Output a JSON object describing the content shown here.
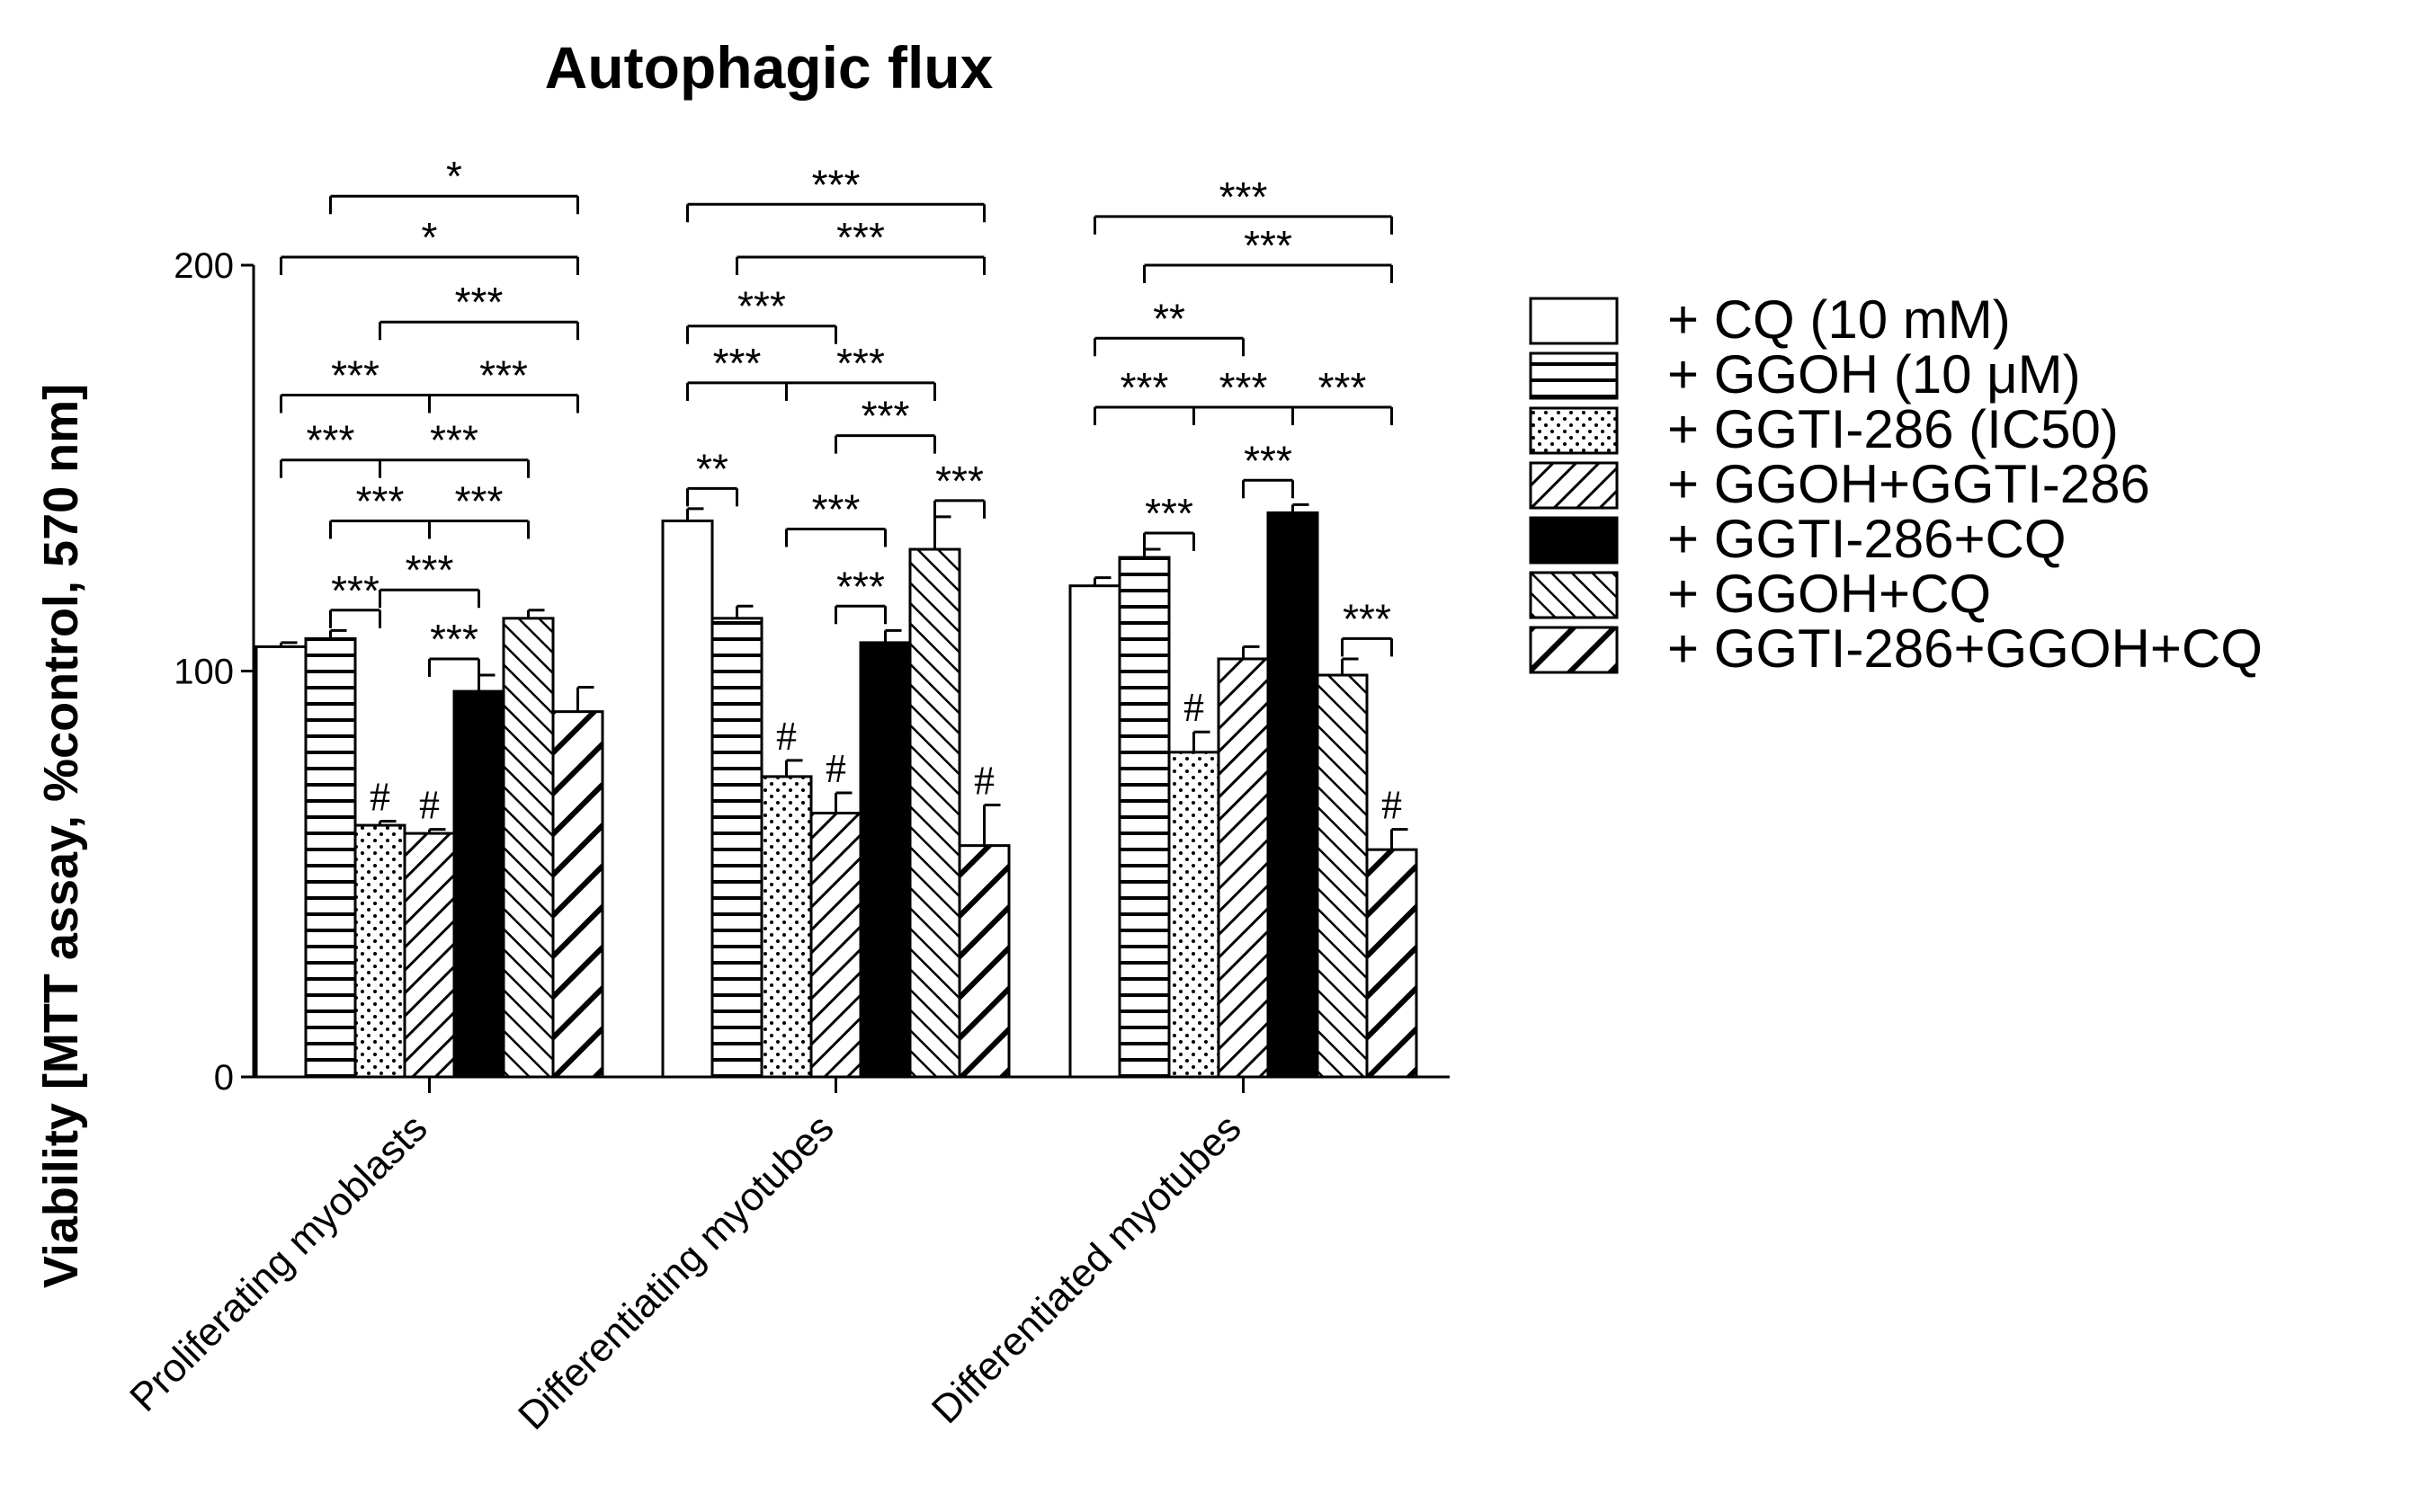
{
  "chart_data": {
    "type": "bar",
    "title": "Autophagic flux",
    "ylabel": "Viability [MTT assay, %control, 570 nm]",
    "xlabel": "",
    "ylim": [
      0,
      200
    ],
    "yticks": [
      0,
      100,
      200
    ],
    "categories": [
      "Proliferating myoblasts",
      "Differentiating myotubes",
      "Differentiated myotubes"
    ],
    "series": [
      {
        "name": "+ CQ (10 mM)",
        "pattern": "open",
        "values": [
          106,
          137,
          121
        ],
        "errors": [
          1,
          3,
          2
        ]
      },
      {
        "name": "+ GGOH (10 μM)",
        "pattern": "horizontal",
        "values": [
          108,
          113,
          128
        ],
        "errors": [
          2,
          3,
          2
        ]
      },
      {
        "name": "+ GGTI-286 (IC50)",
        "pattern": "dots",
        "values": [
          62,
          74,
          80
        ],
        "errors": [
          1,
          4,
          5
        ]
      },
      {
        "name": "+ GGOH+GGTI-286",
        "pattern": "diag-right",
        "values": [
          60,
          65,
          103
        ],
        "errors": [
          1,
          5,
          3
        ]
      },
      {
        "name": "+ GGTI-286+CQ",
        "pattern": "solid",
        "values": [
          95,
          107,
          139
        ],
        "errors": [
          4,
          3,
          2
        ]
      },
      {
        "name": "+ GGOH+CQ",
        "pattern": "diag-left",
        "values": [
          113,
          130,
          99
        ],
        "errors": [
          2,
          8,
          4
        ]
      },
      {
        "name": "+ GGTI-286+GGOH+CQ",
        "pattern": "diag-right-wide",
        "values": [
          90,
          57,
          56
        ],
        "errors": [
          6,
          10,
          5
        ]
      }
    ],
    "hash_marks": [
      {
        "category": 0,
        "series": 2,
        "label": "#"
      },
      {
        "category": 0,
        "series": 3,
        "label": "#"
      },
      {
        "category": 1,
        "series": 2,
        "label": "#"
      },
      {
        "category": 1,
        "series": 3,
        "label": "#"
      },
      {
        "category": 1,
        "series": 6,
        "label": "#"
      },
      {
        "category": 2,
        "series": 2,
        "label": "#"
      },
      {
        "category": 2,
        "series": 6,
        "label": "#"
      }
    ],
    "significance": [
      {
        "category": 0,
        "from": 1,
        "to": 6,
        "y": 217,
        "label": "*"
      },
      {
        "category": 0,
        "from": 0,
        "to": 6,
        "y": 202,
        "label": "*"
      },
      {
        "category": 0,
        "from": 2,
        "to": 6,
        "y": 186,
        "label": "***"
      },
      {
        "category": 0,
        "from": 0,
        "to": 6,
        "mid": 3,
        "y": 168,
        "label": "***",
        "label2": "***"
      },
      {
        "category": 0,
        "from": 0,
        "to": 5,
        "mid": 2,
        "y": 152,
        "label": "***",
        "label2": "***"
      },
      {
        "category": 0,
        "from": 1,
        "to": 5,
        "mid": 3,
        "y": 137,
        "label": "***",
        "label2": "***"
      },
      {
        "category": 0,
        "from": 1,
        "to": 2,
        "y": 115,
        "label": "***"
      },
      {
        "category": 0,
        "from": 2,
        "to": 4,
        "y": 120,
        "label": "***"
      },
      {
        "category": 0,
        "from": 3,
        "to": 4,
        "y": 103,
        "label": "***"
      },
      {
        "category": 1,
        "from": 0,
        "to": 6,
        "y": 215,
        "label": "***"
      },
      {
        "category": 1,
        "from": 1,
        "to": 6,
        "y": 202,
        "label": "***"
      },
      {
        "category": 1,
        "from": 0,
        "to": 3,
        "y": 185,
        "label": "***"
      },
      {
        "category": 1,
        "from": 0,
        "to": 5,
        "mid": 2,
        "y": 171,
        "label": "***",
        "label2": "***"
      },
      {
        "category": 1,
        "from": 3,
        "to": 5,
        "y": 158,
        "label": "***"
      },
      {
        "category": 1,
        "from": 0,
        "to": 1,
        "y": 145,
        "label": "**"
      },
      {
        "category": 1,
        "from": 2,
        "to": 4,
        "y": 135,
        "label": "***"
      },
      {
        "category": 1,
        "from": 5,
        "to": 6,
        "y": 142,
        "label": "***"
      },
      {
        "category": 1,
        "from": 3,
        "to": 4,
        "y": 116,
        "label": "***"
      },
      {
        "category": 2,
        "from": 0,
        "to": 6,
        "y": 212,
        "label": "***"
      },
      {
        "category": 2,
        "from": 1,
        "to": 6,
        "y": 200,
        "label": "***"
      },
      {
        "category": 2,
        "from": 0,
        "to": 3,
        "y": 182,
        "label": "**"
      },
      {
        "category": 2,
        "from": 0,
        "to": 6,
        "mid": 2,
        "mid2": 4,
        "y": 165,
        "label": "***",
        "label2": "***",
        "label3": "***"
      },
      {
        "category": 2,
        "from": 3,
        "to": 4,
        "y": 147,
        "label": "***"
      },
      {
        "category": 2,
        "from": 1,
        "to": 2,
        "y": 134,
        "label": "***"
      },
      {
        "category": 2,
        "from": 5,
        "to": 6,
        "y": 108,
        "label": "***"
      }
    ]
  }
}
